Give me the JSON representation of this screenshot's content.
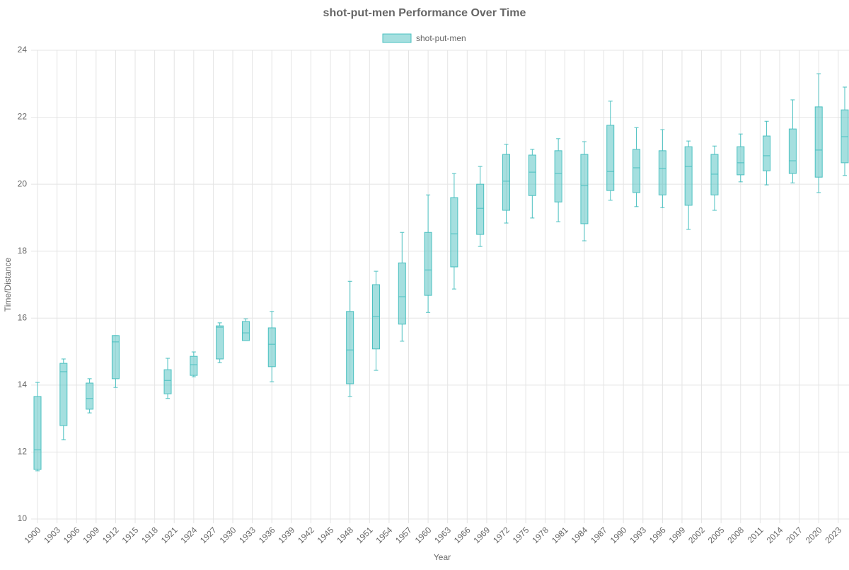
{
  "chart_data": {
    "type": "boxplot",
    "title": "shot-put-men Performance Over Time",
    "x_label": "Year",
    "y_label": "Time/Distance",
    "xlim": [
      1900,
      2024
    ],
    "xticks": [
      1900,
      1903,
      1906,
      1909,
      1912,
      1915,
      1918,
      1921,
      1924,
      1927,
      1930,
      1933,
      1936,
      1939,
      1942,
      1945,
      1948,
      1951,
      1954,
      1957,
      1960,
      1963,
      1966,
      1969,
      1972,
      1975,
      1978,
      1981,
      1984,
      1987,
      1990,
      1993,
      1996,
      1999,
      2002,
      2005,
      2008,
      2011,
      2014,
      2017,
      2020,
      2023
    ],
    "ylim": [
      10,
      24
    ],
    "yticks": [
      10,
      12,
      14,
      16,
      18,
      20,
      22,
      24
    ],
    "grid": true,
    "legend": "top",
    "series": [
      {
        "name": "shot-put-men",
        "color": "#4bc0c0",
        "x": [
          1900,
          1904,
          1908,
          1912,
          1920,
          1924,
          1928,
          1932,
          1936,
          1948,
          1952,
          1956,
          1960,
          1964,
          1968,
          1972,
          1976,
          1980,
          1984,
          1988,
          1992,
          1996,
          2000,
          2004,
          2008,
          2012,
          2016,
          2020,
          2024
        ],
        "min": [
          11.44,
          12.37,
          13.17,
          13.93,
          13.6,
          14.25,
          14.67,
          15.33,
          14.1,
          13.66,
          14.44,
          15.31,
          16.17,
          16.87,
          18.14,
          18.84,
          18.99,
          18.88,
          18.31,
          19.52,
          19.33,
          19.3,
          18.65,
          19.22,
          20.07,
          19.98,
          20.04,
          19.75,
          20.26
        ],
        "q1": [
          11.48,
          12.79,
          13.28,
          14.19,
          13.74,
          14.29,
          14.78,
          15.33,
          14.55,
          14.04,
          15.08,
          15.82,
          16.68,
          17.53,
          18.5,
          19.22,
          19.66,
          19.47,
          18.82,
          19.81,
          19.75,
          19.68,
          19.37,
          19.68,
          20.28,
          20.4,
          20.32,
          20.21,
          20.64
        ],
        "median": [
          12.07,
          14.4,
          13.6,
          15.29,
          14.14,
          14.61,
          15.73,
          15.56,
          15.22,
          15.05,
          16.05,
          16.64,
          17.44,
          18.52,
          19.28,
          20.09,
          20.36,
          20.32,
          19.96,
          20.38,
          20.49,
          20.47,
          20.53,
          20.3,
          20.64,
          20.85,
          20.7,
          21.02,
          21.42
        ],
        "q3": [
          13.66,
          14.65,
          14.06,
          15.48,
          14.46,
          14.86,
          15.77,
          15.9,
          15.71,
          16.2,
          17.0,
          17.65,
          18.56,
          19.6,
          20.0,
          20.89,
          20.87,
          21.0,
          20.89,
          21.76,
          21.04,
          21.0,
          21.12,
          20.89,
          21.12,
          21.44,
          21.65,
          22.31,
          22.22
        ],
        "max": [
          14.08,
          14.78,
          14.19,
          15.48,
          14.8,
          14.99,
          15.86,
          15.98,
          16.2,
          17.1,
          17.4,
          18.56,
          19.68,
          20.32,
          20.53,
          21.19,
          21.04,
          21.36,
          21.27,
          22.48,
          21.69,
          21.63,
          21.29,
          21.14,
          21.5,
          21.88,
          22.52,
          23.3,
          22.9
        ]
      }
    ]
  }
}
